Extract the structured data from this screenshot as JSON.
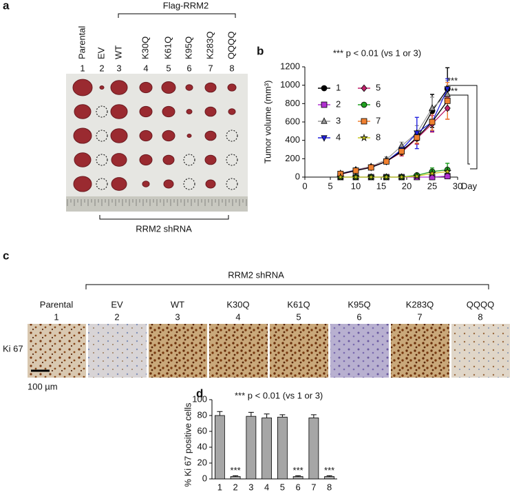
{
  "panel_a": {
    "label": "a",
    "group_label": "Flag-RRM2",
    "samples": [
      "Parental",
      "EV",
      "WT",
      "K30Q",
      "K61Q",
      "K95Q",
      "K283Q",
      "QQQQ"
    ],
    "numbers": [
      "1",
      "2",
      "3",
      "4",
      "5",
      "6",
      "7",
      "8"
    ],
    "bottom_label": "RRM2 shRNA"
  },
  "chart_data": [
    {
      "type": "line",
      "panel_label": "b",
      "title": "*** p < 0.01 (vs 1 or 3)",
      "ylabel": "Tumor volume (mm³)",
      "xlabel": "Day",
      "x": [
        7,
        10,
        13,
        16,
        19,
        22,
        25,
        28
      ],
      "xlim": [
        0,
        30
      ],
      "xticks": [
        0,
        5,
        10,
        15,
        20,
        25,
        30
      ],
      "ylim": [
        0,
        1200
      ],
      "yticks": [
        0,
        200,
        400,
        600,
        800,
        1000,
        1200
      ],
      "legend": "upper left",
      "series": [
        {
          "name": "1",
          "color": "#000000",
          "marker": "circle",
          "values": [
            35,
            75,
            110,
            170,
            290,
            420,
            720,
            960
          ],
          "errors": [
            10,
            15,
            15,
            25,
            40,
            60,
            180,
            230
          ]
        },
        {
          "name": "2",
          "color": "#b030d0",
          "marker": "square",
          "values": [
            0,
            0,
            0,
            0,
            0,
            0,
            0,
            10
          ],
          "errors": [
            0,
            0,
            0,
            0,
            0,
            0,
            5,
            10
          ]
        },
        {
          "name": "3",
          "color": "#999999",
          "marker": "triangle",
          "values": [
            40,
            80,
            115,
            190,
            340,
            480,
            750,
            900
          ],
          "errors": [
            10,
            15,
            15,
            30,
            40,
            80,
            120,
            150
          ]
        },
        {
          "name": "4",
          "color": "#2020e0",
          "marker": "triangle-down",
          "values": [
            35,
            75,
            105,
            170,
            300,
            480,
            600,
            960
          ],
          "errors": [
            10,
            15,
            15,
            25,
            40,
            170,
            100,
            110
          ]
        },
        {
          "name": "5",
          "color": "#c0206a",
          "marker": "diamond",
          "values": [
            30,
            70,
            110,
            170,
            270,
            420,
            580,
            750
          ],
          "errors": [
            10,
            15,
            15,
            25,
            40,
            60,
            90,
            120
          ]
        },
        {
          "name": "6",
          "color": "#20a020",
          "marker": "circle",
          "values": [
            0,
            0,
            0,
            0,
            0,
            20,
            60,
            80
          ],
          "errors": [
            0,
            0,
            0,
            0,
            0,
            10,
            40,
            70
          ]
        },
        {
          "name": "7",
          "color": "#f08030",
          "marker": "square",
          "values": [
            35,
            70,
            105,
            170,
            280,
            430,
            600,
            830
          ],
          "errors": [
            10,
            15,
            15,
            25,
            40,
            60,
            90,
            200
          ]
        },
        {
          "name": "8",
          "color": "#c8c820",
          "marker": "star",
          "values": [
            0,
            0,
            0,
            0,
            0,
            10,
            40,
            60
          ],
          "errors": [
            0,
            0,
            0,
            0,
            0,
            5,
            20,
            30
          ]
        }
      ],
      "annotations": [
        "***",
        "***"
      ]
    },
    {
      "type": "bar",
      "panel_label": "d",
      "title": "*** p < 0.01 (vs 1 or 3)",
      "ylabel": "% Ki 67 positive cells",
      "categories": [
        "1",
        "2",
        "3",
        "4",
        "5",
        "6",
        "7",
        "8"
      ],
      "values": [
        80,
        3,
        79,
        77,
        78,
        3,
        77,
        3
      ],
      "errors": [
        5,
        1,
        5,
        5,
        3,
        1,
        4,
        1
      ],
      "color": "#a6a6a6",
      "ylim": [
        0,
        100
      ],
      "yticks": [
        0,
        20,
        40,
        60,
        80,
        100
      ],
      "significance": [
        null,
        "***",
        null,
        null,
        null,
        "***",
        null,
        "***"
      ]
    }
  ],
  "panel_c": {
    "label": "c",
    "group_label": "RRM2 shRNA",
    "samples": [
      "Parental",
      "EV",
      "WT",
      "K30Q",
      "K61Q",
      "K95Q",
      "K283Q",
      "QQQQ"
    ],
    "numbers": [
      "1",
      "2",
      "3",
      "4",
      "5",
      "6",
      "7",
      "8"
    ],
    "row_label": "Ki 67",
    "scale_bar": "100 µm"
  }
}
